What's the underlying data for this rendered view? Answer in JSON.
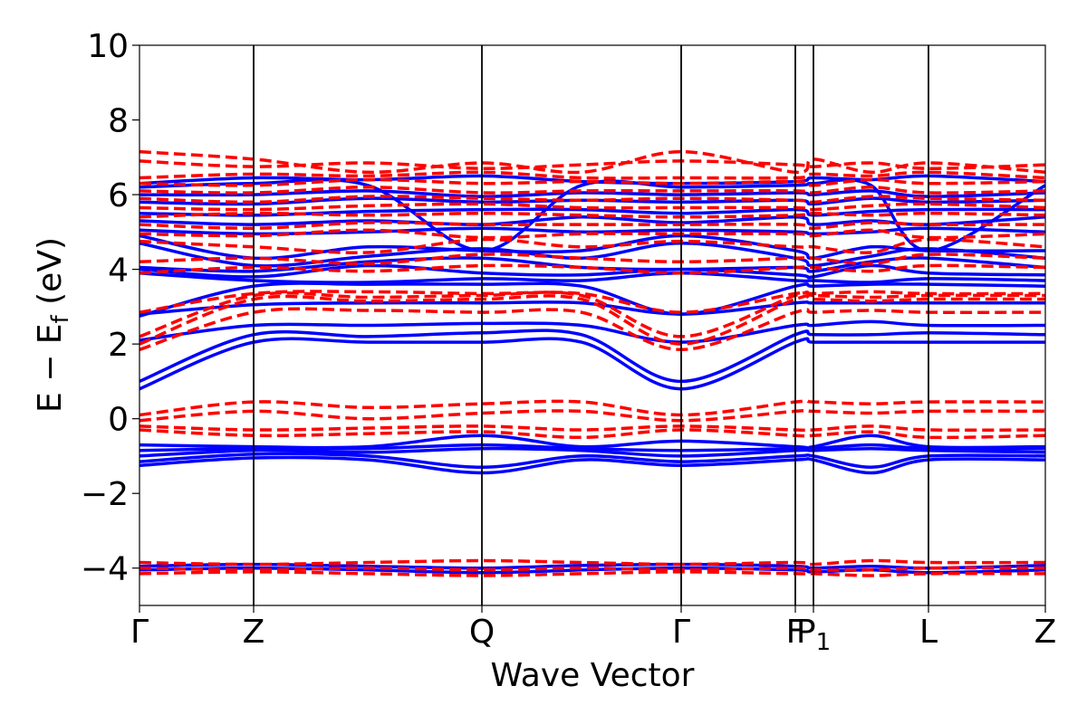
{
  "chart_data": {
    "type": "line",
    "title": "",
    "xlabel": "Wave Vector",
    "ylabel": {
      "main": "E − E",
      "sub": "f",
      "unit": " (eV)"
    },
    "ylim": [
      -5,
      10
    ],
    "yticks": [
      {
        "value": -4,
        "label": "−4"
      },
      {
        "value": -2,
        "label": "−2"
      },
      {
        "value": 0,
        "label": "0"
      },
      {
        "value": 2,
        "label": "2"
      },
      {
        "value": 4,
        "label": "4"
      },
      {
        "value": 6,
        "label": "6"
      },
      {
        "value": 8,
        "label": "8"
      },
      {
        "value": 10,
        "label": "10"
      }
    ],
    "kpath": [
      {
        "pos": 0.0,
        "label": "Γ"
      },
      {
        "pos": 0.126,
        "label": "Z"
      },
      {
        "pos": 0.378,
        "label": "Q"
      },
      {
        "pos": 0.598,
        "label": "Γ"
      },
      {
        "pos": 0.724,
        "label": "F"
      },
      {
        "pos": 0.744,
        "label": "P",
        "sub": "1"
      },
      {
        "pos": 0.871,
        "label": "L"
      },
      {
        "pos": 1.0,
        "label": "Z"
      }
    ],
    "grid": false,
    "legend": "none",
    "series": [
      {
        "style": "solid",
        "color": "#0000ff",
        "bands": [
          [
            -4.05,
            -4.0,
            -4.05,
            -4.12,
            -4.05,
            -4.0,
            -4.05,
            -4.1,
            -4.05,
            -4.12,
            -4.05
          ],
          [
            -3.95,
            -3.9,
            -3.95,
            -4.0,
            -3.93,
            -3.9,
            -3.95,
            -4.0,
            -3.95,
            -4.0,
            -3.93
          ],
          [
            -1.25,
            -1.05,
            -1.1,
            -1.45,
            -1.1,
            -1.25,
            -1.1,
            -1.1,
            -1.45,
            -1.1,
            -1.1
          ],
          [
            -1.15,
            -0.95,
            -1.0,
            -1.3,
            -1.0,
            -1.15,
            -1.0,
            -1.0,
            -1.3,
            -1.0,
            -1.0
          ],
          [
            -1.0,
            -0.85,
            -0.9,
            -0.8,
            -0.85,
            -1.0,
            -0.85,
            -0.85,
            -0.8,
            -0.85,
            -0.9
          ],
          [
            -0.85,
            -0.8,
            -0.8,
            -0.7,
            -0.8,
            -0.85,
            -0.8,
            -0.8,
            -0.7,
            -0.8,
            -0.8
          ],
          [
            -0.7,
            -0.75,
            -0.75,
            -0.45,
            -0.75,
            -0.6,
            -0.75,
            -0.75,
            -0.45,
            -0.75,
            -0.75
          ],
          [
            0.8,
            2.05,
            2.05,
            2.05,
            2.05,
            0.8,
            2.05,
            2.05,
            2.05,
            2.05,
            2.05
          ],
          [
            1.0,
            2.25,
            2.2,
            2.3,
            2.25,
            1.0,
            2.25,
            2.25,
            2.25,
            2.3,
            2.25
          ],
          [
            2.1,
            2.5,
            2.5,
            2.55,
            2.5,
            2.05,
            2.5,
            2.5,
            2.6,
            2.5,
            2.5
          ],
          [
            2.8,
            3.05,
            3.1,
            3.1,
            3.1,
            2.8,
            3.1,
            3.1,
            3.1,
            3.1,
            3.1
          ],
          [
            2.75,
            3.55,
            3.6,
            3.6,
            3.55,
            2.8,
            3.55,
            3.55,
            3.6,
            3.6,
            3.55
          ],
          [
            3.9,
            3.7,
            3.65,
            3.75,
            3.7,
            3.9,
            3.7,
            3.7,
            3.65,
            3.75,
            3.7
          ],
          [
            4.0,
            3.8,
            4.1,
            3.9,
            3.85,
            4.0,
            3.85,
            3.8,
            4.1,
            3.9,
            3.85
          ],
          [
            4.05,
            3.95,
            4.2,
            4.3,
            4.05,
            4.0,
            4.05,
            3.95,
            4.2,
            4.3,
            4.05
          ],
          [
            4.7,
            4.1,
            4.35,
            4.55,
            4.3,
            4.7,
            4.3,
            4.1,
            4.35,
            4.55,
            4.3
          ],
          [
            4.9,
            4.3,
            4.6,
            4.5,
            4.5,
            4.9,
            4.5,
            4.3,
            4.6,
            4.5,
            4.5
          ],
          [
            5.05,
            4.95,
            5.0,
            5.1,
            5.0,
            5.05,
            5.0,
            4.95,
            5.0,
            5.1,
            5.0
          ],
          [
            5.3,
            5.2,
            5.3,
            5.2,
            5.4,
            5.25,
            5.4,
            5.2,
            5.3,
            5.2,
            5.4
          ],
          [
            5.5,
            5.45,
            5.55,
            5.6,
            5.6,
            5.5,
            5.6,
            5.45,
            5.55,
            5.6,
            5.6
          ],
          [
            5.8,
            5.75,
            5.9,
            5.8,
            5.85,
            5.8,
            5.85,
            5.75,
            5.9,
            5.8,
            5.85
          ],
          [
            6.0,
            6.0,
            6.1,
            5.95,
            6.05,
            6.0,
            6.05,
            6.0,
            6.1,
            5.95,
            6.05
          ],
          [
            6.2,
            6.3,
            6.25,
            4.5,
            6.25,
            6.2,
            6.25,
            6.3,
            6.25,
            4.5,
            6.25
          ],
          [
            6.3,
            6.45,
            6.4,
            6.5,
            6.35,
            6.3,
            6.35,
            6.45,
            6.4,
            6.5,
            6.35
          ]
        ]
      },
      {
        "style": "dashed",
        "color": "#ff0000",
        "bands": [
          [
            -4.15,
            -4.1,
            -4.15,
            -4.2,
            -4.15,
            -4.1,
            -4.15,
            -4.15,
            -4.2,
            -4.15,
            -4.15
          ],
          [
            -4.0,
            -4.05,
            -4.0,
            -4.05,
            -4.0,
            -4.05,
            -4.0,
            -4.05,
            -4.05,
            -4.0,
            -4.0
          ],
          [
            -3.85,
            -3.9,
            -3.85,
            -3.8,
            -3.85,
            -3.9,
            -3.85,
            -3.9,
            -3.8,
            -3.85,
            -3.85
          ],
          [
            -0.3,
            -0.45,
            -0.4,
            -0.35,
            -0.5,
            -0.3,
            -0.45,
            -0.45,
            -0.35,
            -0.5,
            -0.45
          ],
          [
            -0.2,
            -0.3,
            -0.25,
            -0.2,
            -0.3,
            -0.2,
            -0.3,
            -0.3,
            -0.2,
            -0.3,
            -0.3
          ],
          [
            -0.05,
            0.2,
            0.0,
            0.15,
            0.2,
            -0.05,
            0.2,
            0.2,
            0.15,
            0.2,
            0.2
          ],
          [
            0.1,
            0.45,
            0.3,
            0.4,
            0.45,
            0.1,
            0.45,
            0.45,
            0.4,
            0.45,
            0.45
          ],
          [
            1.85,
            2.85,
            2.9,
            2.85,
            2.85,
            1.85,
            2.85,
            2.85,
            2.9,
            2.85,
            2.85
          ],
          [
            2.0,
            3.2,
            3.15,
            3.2,
            3.2,
            2.0,
            3.2,
            3.2,
            3.15,
            3.2,
            3.2
          ],
          [
            2.2,
            3.3,
            3.25,
            3.3,
            3.3,
            2.2,
            3.3,
            3.3,
            3.25,
            3.3,
            3.3
          ],
          [
            2.85,
            3.35,
            3.4,
            3.35,
            3.35,
            2.85,
            3.35,
            3.35,
            3.4,
            3.35,
            3.35
          ],
          [
            3.9,
            4.05,
            3.95,
            4.1,
            4.05,
            3.9,
            4.05,
            4.05,
            3.95,
            4.1,
            4.05
          ],
          [
            4.2,
            4.3,
            4.15,
            4.4,
            4.3,
            4.2,
            4.3,
            4.3,
            4.15,
            4.4,
            4.3
          ],
          [
            4.75,
            4.6,
            4.45,
            4.8,
            4.6,
            4.75,
            4.6,
            4.6,
            4.45,
            4.8,
            4.6
          ],
          [
            4.95,
            4.9,
            5.05,
            4.85,
            4.95,
            4.95,
            4.95,
            4.9,
            5.05,
            4.85,
            4.95
          ],
          [
            5.2,
            5.1,
            5.25,
            5.2,
            5.2,
            5.2,
            5.2,
            5.1,
            5.25,
            5.2,
            5.2
          ],
          [
            5.4,
            5.5,
            5.45,
            5.5,
            5.45,
            5.4,
            5.45,
            5.5,
            5.45,
            5.5,
            5.45
          ],
          [
            5.65,
            5.6,
            5.7,
            5.75,
            5.65,
            5.65,
            5.65,
            5.6,
            5.7,
            5.75,
            5.65
          ],
          [
            5.9,
            5.8,
            5.95,
            5.9,
            5.85,
            5.9,
            5.85,
            5.8,
            5.95,
            5.9,
            5.85
          ],
          [
            6.1,
            6.05,
            6.2,
            6.05,
            6.1,
            6.1,
            6.1,
            6.05,
            6.2,
            6.05,
            6.1
          ],
          [
            6.3,
            6.25,
            6.4,
            6.3,
            6.35,
            6.3,
            6.35,
            6.25,
            6.4,
            6.3,
            6.35
          ],
          [
            6.45,
            6.55,
            6.5,
            6.6,
            6.45,
            6.45,
            6.45,
            6.55,
            6.5,
            6.6,
            6.45
          ],
          [
            6.9,
            6.75,
            6.85,
            6.7,
            6.8,
            6.9,
            6.8,
            6.75,
            6.85,
            6.7,
            6.8
          ],
          [
            7.15,
            6.95,
            6.6,
            6.85,
            6.6,
            7.15,
            6.6,
            6.95,
            6.6,
            6.85,
            6.6
          ]
        ]
      }
    ]
  }
}
